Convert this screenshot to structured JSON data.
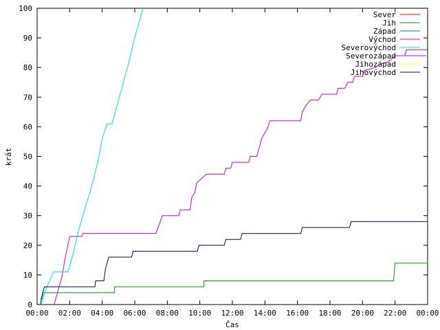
{
  "chart_data": {
    "type": "line",
    "title": "",
    "xlabel": "Čas",
    "ylabel": "krát",
    "ylim": [
      0,
      100
    ],
    "y_ticks": [
      0,
      10,
      20,
      30,
      40,
      50,
      60,
      70,
      80,
      90,
      100
    ],
    "x_ticks": [
      "00:00",
      "02:00",
      "04:00",
      "06:00",
      "08:00",
      "10:00",
      "12:00",
      "14:00",
      "16:00",
      "18:00",
      "20:00",
      "22:00",
      "00:00"
    ],
    "x_unit": "hours",
    "xlim": [
      0,
      24
    ],
    "grid": false,
    "legend_position": "top-right",
    "series": [
      {
        "name": "Sever",
        "color": "#ff0000",
        "points": []
      },
      {
        "name": "Jih",
        "color": "#00a000",
        "points": [
          [
            0.2,
            2
          ],
          [
            0.35,
            2
          ],
          [
            0.35,
            4
          ],
          [
            4.75,
            4
          ],
          [
            4.75,
            6
          ],
          [
            10.25,
            6
          ],
          [
            10.25,
            8
          ],
          [
            21.9,
            8
          ],
          [
            22.0,
            14
          ],
          [
            24,
            14
          ]
        ]
      },
      {
        "name": "Západ",
        "color": "#008080",
        "points": []
      },
      {
        "name": "Východ",
        "color": "#c000ff",
        "points": [
          [
            1.05,
            0
          ],
          [
            1.15,
            2
          ],
          [
            1.35,
            6
          ],
          [
            1.55,
            10
          ],
          [
            1.7,
            15
          ],
          [
            1.85,
            19
          ],
          [
            2.0,
            23
          ],
          [
            2.75,
            23
          ],
          [
            2.8,
            24
          ],
          [
            7.3,
            24
          ],
          [
            7.5,
            27
          ],
          [
            7.7,
            30
          ],
          [
            8.7,
            30
          ],
          [
            8.8,
            32
          ],
          [
            9.4,
            32
          ],
          [
            9.5,
            36
          ],
          [
            9.7,
            38
          ],
          [
            9.8,
            41
          ],
          [
            10.0,
            42
          ],
          [
            10.4,
            44
          ],
          [
            11.5,
            44
          ],
          [
            11.6,
            46
          ],
          [
            11.9,
            46
          ],
          [
            12.0,
            48
          ],
          [
            13.0,
            48
          ],
          [
            13.1,
            50
          ],
          [
            13.5,
            50
          ],
          [
            13.6,
            52
          ],
          [
            13.8,
            56
          ],
          [
            14.0,
            58
          ],
          [
            14.2,
            60
          ],
          [
            14.3,
            62
          ],
          [
            16.2,
            62
          ],
          [
            16.3,
            65
          ],
          [
            16.5,
            67
          ],
          [
            16.8,
            69
          ],
          [
            17.3,
            69
          ],
          [
            17.5,
            71
          ],
          [
            18.4,
            71
          ],
          [
            18.5,
            73
          ],
          [
            18.9,
            73
          ],
          [
            19.1,
            75
          ],
          [
            19.4,
            75
          ],
          [
            19.5,
            77
          ],
          [
            20.0,
            77
          ],
          [
            20.1,
            79
          ],
          [
            20.8,
            80
          ],
          [
            21.0,
            81
          ],
          [
            21.6,
            82
          ],
          [
            22.0,
            84
          ],
          [
            22.6,
            84
          ],
          [
            22.7,
            86
          ],
          [
            24,
            86
          ]
        ]
      },
      {
        "name": "Severovýchod",
        "color": "#00e0e0",
        "points": [
          [
            0.25,
            0
          ],
          [
            0.4,
            3
          ],
          [
            0.6,
            6
          ],
          [
            0.85,
            9
          ],
          [
            1.0,
            11
          ],
          [
            1.9,
            11
          ],
          [
            2.2,
            17
          ],
          [
            2.5,
            24
          ],
          [
            2.8,
            30
          ],
          [
            3.2,
            37
          ],
          [
            3.5,
            43
          ],
          [
            3.8,
            50
          ],
          [
            4.0,
            56
          ],
          [
            4.3,
            61
          ],
          [
            4.6,
            61
          ],
          [
            4.9,
            67
          ],
          [
            5.3,
            75
          ],
          [
            5.6,
            81
          ],
          [
            5.9,
            88
          ],
          [
            6.2,
            94
          ],
          [
            6.5,
            100
          ]
        ]
      },
      {
        "name": "Severozápad",
        "color": "#c000ff",
        "points": [
          [
            22.1,
            84
          ],
          [
            23.9,
            84
          ]
        ]
      },
      {
        "name": "Jihozápad",
        "color": "#ffff00",
        "points": []
      },
      {
        "name": "Jihovýchod",
        "color": "#000080",
        "points": [
          [
            0.2,
            0
          ],
          [
            0.3,
            3
          ],
          [
            0.45,
            6
          ],
          [
            3.55,
            6
          ],
          [
            3.6,
            8
          ],
          [
            4.1,
            8
          ],
          [
            4.2,
            12
          ],
          [
            4.4,
            16
          ],
          [
            5.8,
            16
          ],
          [
            5.9,
            18
          ],
          [
            9.85,
            18
          ],
          [
            9.95,
            20
          ],
          [
            11.5,
            20
          ],
          [
            11.6,
            22
          ],
          [
            12.5,
            22
          ],
          [
            12.6,
            24
          ],
          [
            16.2,
            24
          ],
          [
            16.3,
            26
          ],
          [
            19.2,
            26
          ],
          [
            19.3,
            28
          ],
          [
            24,
            28
          ]
        ]
      }
    ]
  }
}
